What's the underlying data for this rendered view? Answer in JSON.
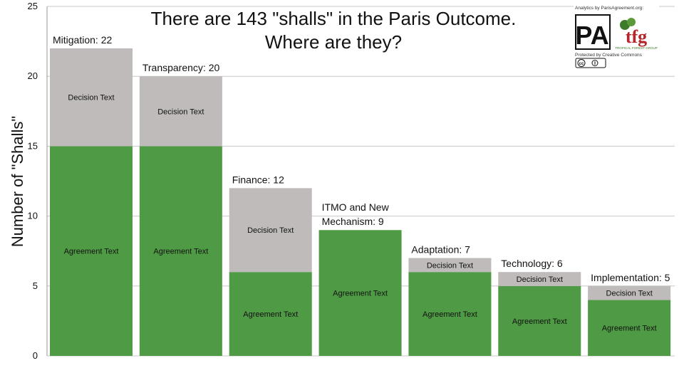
{
  "colors": {
    "agreement": "#4f9a44",
    "decision": "#c0bbbb",
    "grid": "#c8c8c8"
  },
  "chart_data": {
    "type": "bar",
    "stacked": true,
    "title_lines": [
      "There are 143 \"shalls\" in the Paris Outcome.",
      "Where are they?"
    ],
    "xlabel": "",
    "ylabel": "Number of  \"Shalls\"",
    "ylim": [
      0,
      25
    ],
    "yticks": [
      0,
      5,
      10,
      15,
      20,
      25
    ],
    "grid": true,
    "categories": [
      [
        "Mitigation: 22"
      ],
      [
        "Transparency: 20"
      ],
      [
        "Finance: 12"
      ],
      [
        "ITMO and New",
        "Mechanism: 9"
      ],
      [
        "Adaptation: 7"
      ],
      [
        "Technology: 6"
      ],
      [
        "Implementation: 5"
      ]
    ],
    "series": [
      {
        "name": "Agreement Text",
        "values": [
          15,
          15,
          6,
          9,
          6,
          5,
          4
        ]
      },
      {
        "name": "Decision Text",
        "values": [
          7,
          5,
          6,
          0,
          1,
          1,
          1
        ]
      }
    ]
  },
  "logo": {
    "analytics_text": "Analytics by ParisAgreement.org:",
    "pa_mark": "PA",
    "tfg_mark": "tfg",
    "tfg_subtext": "TROPICAL FOREST GROUP",
    "cc_text": "Protected by Creative Commons",
    "cc_badge": "cc"
  }
}
